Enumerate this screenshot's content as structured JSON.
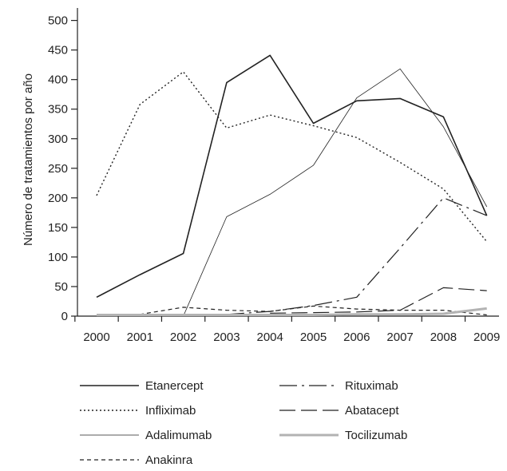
{
  "chart_data": {
    "type": "line",
    "title": "",
    "xlabel": "",
    "ylabel": "Número de tratamientos por año",
    "x": [
      "2000",
      "2001",
      "2002",
      "2003",
      "2004",
      "2005",
      "2006",
      "2007",
      "2008",
      "2009"
    ],
    "y_ticks": [
      "0",
      "50",
      "100",
      "150",
      "200",
      "250",
      "300",
      "350",
      "400",
      "450",
      "500"
    ],
    "ylim": [
      0,
      520
    ],
    "grid": false,
    "legend_position": "bottom",
    "series": [
      {
        "name": "Etanercept",
        "dash": "solid",
        "color": "#222222",
        "width": 1.6,
        "values": [
          32,
          70,
          106,
          395,
          441,
          326,
          364,
          368,
          337,
          170
        ]
      },
      {
        "name": "Infliximab",
        "dash": "dotted",
        "color": "#222222",
        "width": 1.4,
        "values": [
          204,
          358,
          413,
          318,
          340,
          322,
          302,
          260,
          215,
          126
        ]
      },
      {
        "name": "Adalimumab",
        "dash": "solid",
        "color": "#222222",
        "width": 0.8,
        "values": [
          null,
          null,
          0,
          168,
          206,
          255,
          369,
          418,
          320,
          185
        ]
      },
      {
        "name": "Anakinra",
        "dash": "short-dash",
        "color": "#222222",
        "width": 1.2,
        "values": [
          3,
          3,
          15,
          10,
          8,
          17,
          12,
          10,
          10,
          2
        ]
      },
      {
        "name": "Rituximab",
        "dash": "dash-dot",
        "color": "#222222",
        "width": 1.2,
        "values": [
          null,
          null,
          null,
          3,
          8,
          18,
          32,
          115,
          200,
          170
        ]
      },
      {
        "name": "Abatacept",
        "dash": "long-dash",
        "color": "#222222",
        "width": 1.2,
        "values": [
          null,
          null,
          null,
          null,
          5,
          6,
          7,
          10,
          48,
          43
        ]
      },
      {
        "name": "Tocilizumab",
        "dash": "solid",
        "color": "#b3b3b3",
        "width": 3,
        "values": [
          2,
          2,
          2,
          2,
          2,
          2,
          3,
          3,
          4,
          13
        ]
      }
    ]
  }
}
